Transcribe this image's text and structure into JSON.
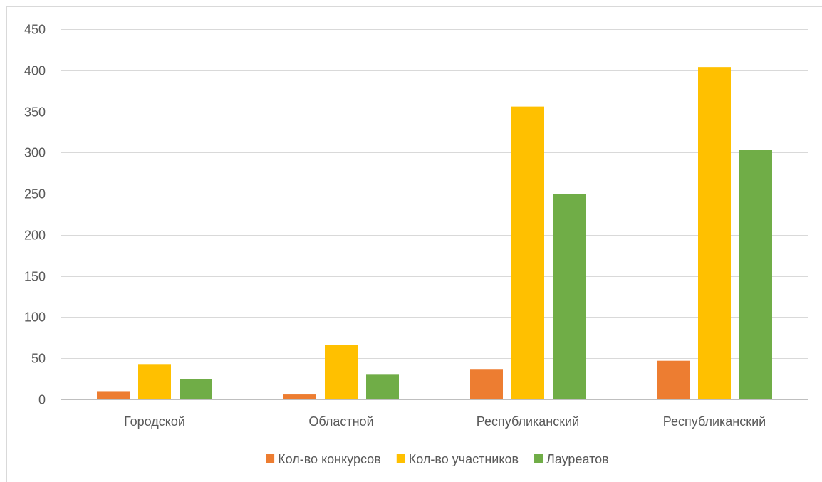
{
  "chart_data": {
    "type": "bar",
    "categories": [
      "Городской",
      "Областной",
      "Республиканский",
      "Республиканский"
    ],
    "series": [
      {
        "name": "Кол-во конкурсов",
        "values": [
          10,
          6,
          37,
          47
        ],
        "color": "#ed7d31"
      },
      {
        "name": "Кол-во участников",
        "values": [
          43,
          66,
          356,
          404
        ],
        "color": "#ffc000"
      },
      {
        "name": "Лауреатов",
        "values": [
          25,
          30,
          250,
          303
        ],
        "color": "#70ad47"
      }
    ],
    "ylim": [
      0,
      450
    ],
    "yticks": [
      0,
      50,
      100,
      150,
      200,
      250,
      300,
      350,
      400,
      450
    ],
    "grid": true,
    "legend": "bottom"
  }
}
